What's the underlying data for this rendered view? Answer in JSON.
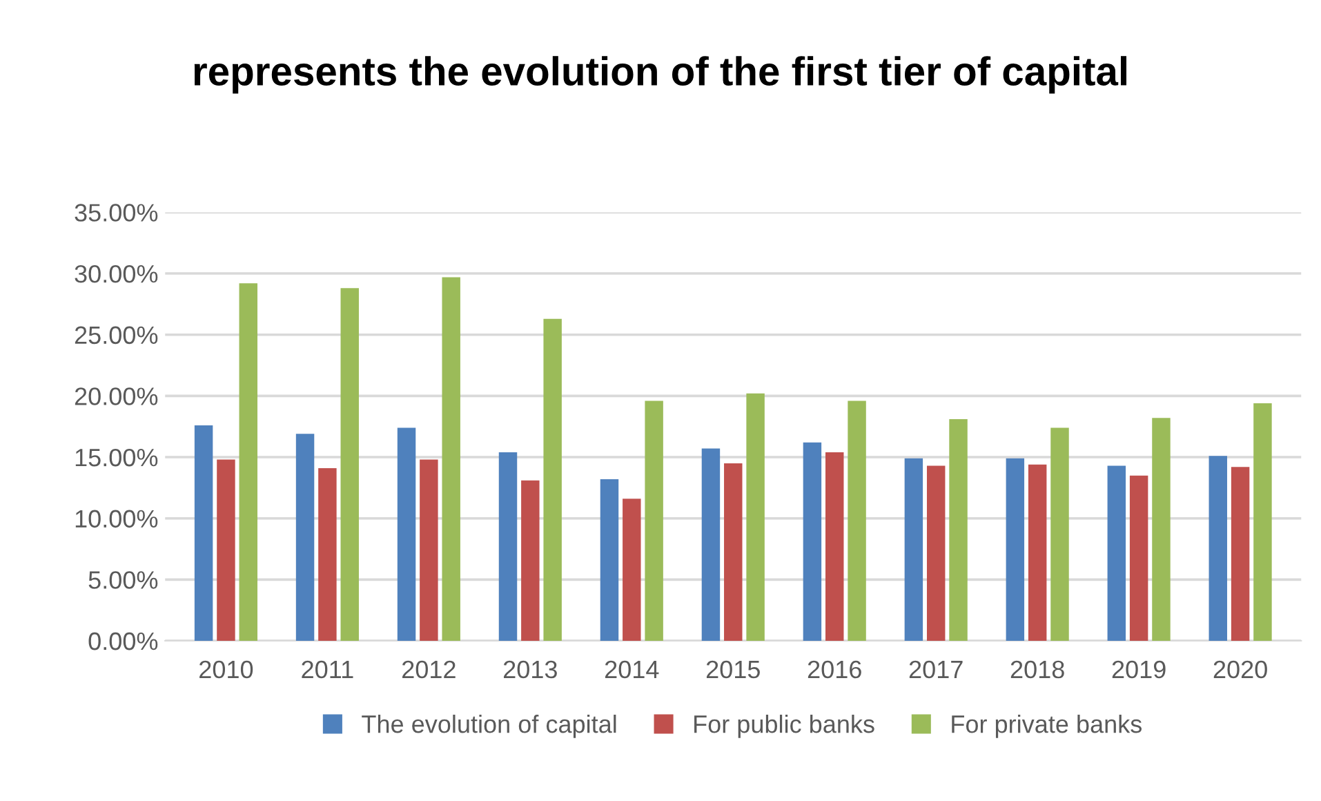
{
  "chart_data": {
    "type": "bar",
    "title": "represents the evolution of the first tier of capital",
    "categories": [
      "2010",
      "2011",
      "2012",
      "2013",
      "2014",
      "2015",
      "2016",
      "2017",
      "2018",
      "2019",
      "2020"
    ],
    "series": [
      {
        "name": "The evolution of capital",
        "color": "#4f81bd",
        "values": [
          17.6,
          16.9,
          17.4,
          15.4,
          13.2,
          15.7,
          16.2,
          14.9,
          14.9,
          14.3,
          15.1
        ]
      },
      {
        "name": "For public banks",
        "color": "#c0504d",
        "values": [
          14.8,
          14.1,
          14.8,
          13.1,
          11.6,
          14.5,
          15.4,
          14.3,
          14.4,
          13.5,
          14.2
        ]
      },
      {
        "name": "For private banks",
        "color": "#9bbb59",
        "values": [
          29.2,
          28.8,
          29.7,
          26.3,
          19.6,
          20.2,
          19.6,
          18.1,
          17.4,
          18.2,
          19.4
        ]
      }
    ],
    "ylim": [
      0,
      35
    ],
    "yticks": [
      {
        "value": 0,
        "label": "0.00%"
      },
      {
        "value": 5,
        "label": "5.00%"
      },
      {
        "value": 10,
        "label": "10.00%"
      },
      {
        "value": 15,
        "label": "15.00%"
      },
      {
        "value": 20,
        "label": "20.00%"
      },
      {
        "value": 25,
        "label": "25.00%"
      },
      {
        "value": 30,
        "label": "30.00%"
      },
      {
        "value": 35,
        "label": "35.00%"
      }
    ],
    "grid": "y",
    "legend": "bottom"
  }
}
